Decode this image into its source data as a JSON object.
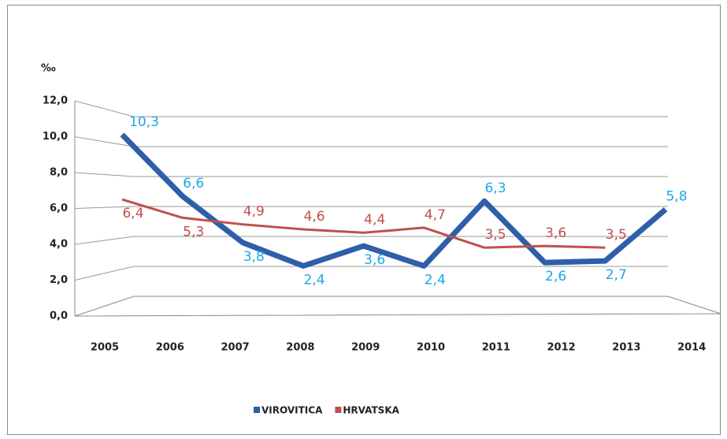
{
  "chart_data": {
    "type": "line",
    "y_label": "‰",
    "categories": [
      "2005",
      "2006",
      "2007",
      "2008",
      "2009",
      "2010",
      "2011",
      "2012",
      "2013",
      "2014"
    ],
    "series": [
      {
        "name": "VIROVITICA",
        "color": "#2e5fa8",
        "label_color": "#1aa7ec",
        "values": [
          10.3,
          6.6,
          3.8,
          2.4,
          3.6,
          2.4,
          6.3,
          2.6,
          2.7,
          5.8
        ],
        "value_labels": [
          "10,3",
          "6,6",
          "3,8",
          "2,4",
          "3,6",
          "2,4",
          "6,3",
          "2,6",
          "2,7",
          "5,8"
        ]
      },
      {
        "name": "HRVATSKA",
        "color": "#c0504d",
        "label_color": "#c0504d",
        "values": [
          6.4,
          5.3,
          4.9,
          4.6,
          4.4,
          4.7,
          3.5,
          3.6,
          3.5,
          null
        ],
        "value_labels": [
          "6,4",
          "5,3",
          "4,9",
          "4,6",
          "4,4",
          "4,7",
          "3,5",
          "3,6",
          "3,5",
          null
        ]
      }
    ],
    "ylim": [
      0,
      12
    ],
    "yticks": [
      {
        "value": 0,
        "label": "0,0"
      },
      {
        "value": 2,
        "label": "2,0"
      },
      {
        "value": 4,
        "label": "4,0"
      },
      {
        "value": 6,
        "label": "6,0"
      },
      {
        "value": 8,
        "label": "8,0"
      },
      {
        "value": 10,
        "label": "10,0"
      },
      {
        "value": 12,
        "label": "12,0"
      }
    ],
    "grid": true,
    "legend": "bottom"
  }
}
